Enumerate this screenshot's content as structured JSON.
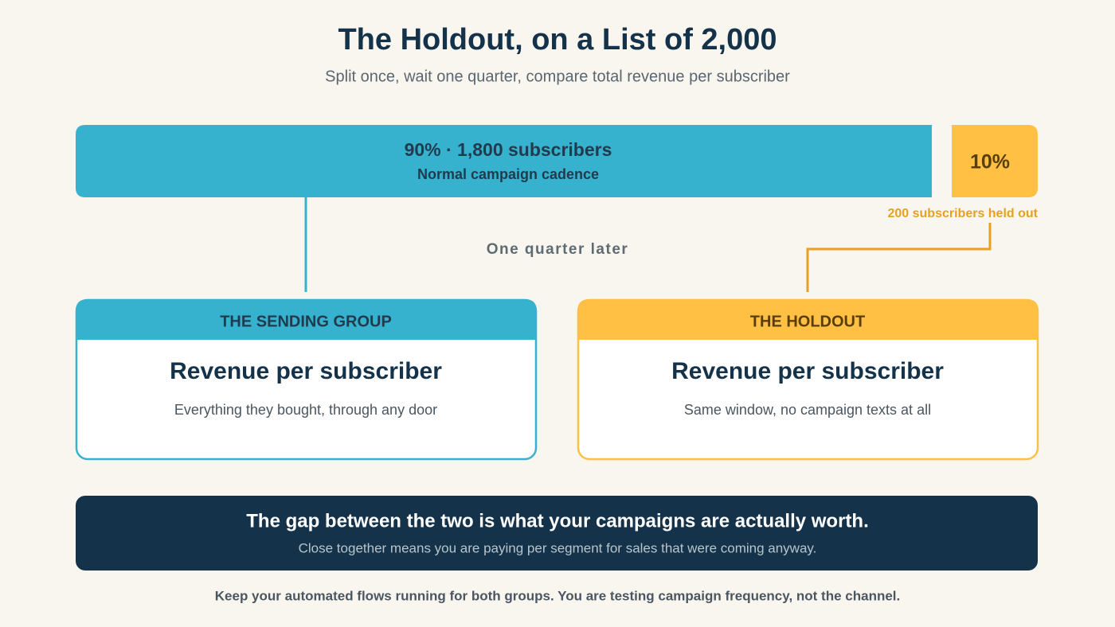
{
  "header": {
    "title": "The Holdout, on a List of 2,000",
    "subtitle": "Split once, wait one quarter, compare total revenue per subscriber"
  },
  "split": {
    "main": {
      "label": "90% · 1,800 subscribers",
      "caption": "Normal campaign cadence"
    },
    "holdout": {
      "label": "10%",
      "caption": "200 subscribers held out"
    }
  },
  "timing": "One quarter later",
  "cards": [
    {
      "header": "THE SENDING GROUP",
      "title": "Revenue per subscriber",
      "text": "Everything they bought, through any door"
    },
    {
      "header": "THE HOLDOUT",
      "title": "Revenue per subscriber",
      "text": "Same window, no campaign texts at all"
    }
  ],
  "callout": {
    "title": "The gap between the two is what your campaigns are actually worth.",
    "text": "Close together means you are paying per segment for sales that were coming anyway."
  },
  "footer": "Keep your automated flows running for both groups. You are testing campaign frequency, not the channel."
}
